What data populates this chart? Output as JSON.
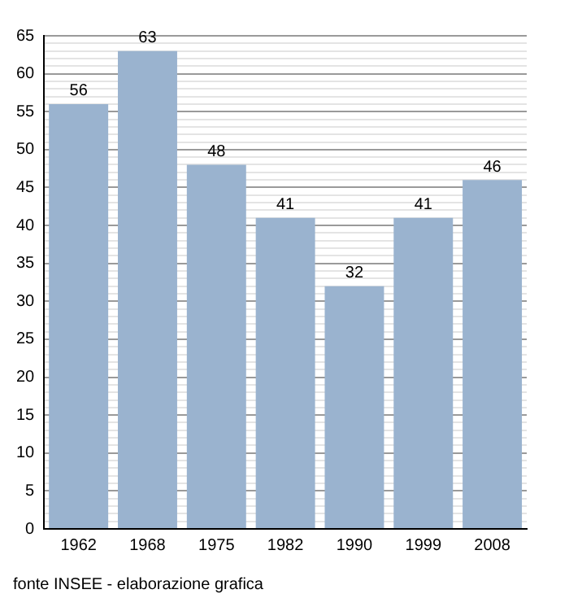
{
  "chart_data": {
    "type": "bar",
    "categories": [
      "1962",
      "1968",
      "1975",
      "1982",
      "1990",
      "1999",
      "2008"
    ],
    "values": [
      56,
      63,
      48,
      41,
      32,
      41,
      46
    ],
    "color": "#9ab3cf",
    "data_labels": true,
    "grid": "y",
    "legend": false,
    "ylim": [
      0,
      65
    ],
    "yticks": [
      0,
      {
        "value": 1,
        "label": null
      },
      {
        "value": 2,
        "label": null
      },
      {
        "value": 3,
        "label": null
      },
      {
        "value": 4,
        "label": null
      },
      5,
      {
        "value": 6,
        "label": null
      },
      {
        "value": 7,
        "label": null
      },
      {
        "value": 8,
        "label": null
      },
      {
        "value": 9,
        "label": null
      },
      10,
      {
        "value": 11,
        "label": null
      },
      {
        "value": 12,
        "label": null
      },
      {
        "value": 13,
        "label": null
      },
      {
        "value": 14,
        "label": null
      },
      15,
      {
        "value": 16,
        "label": null
      },
      {
        "value": 17,
        "label": null
      },
      {
        "value": 18,
        "label": null
      },
      {
        "value": 19,
        "label": null
      },
      20,
      {
        "value": 21,
        "label": null
      },
      {
        "value": 22,
        "label": null
      },
      {
        "value": 23,
        "label": null
      },
      {
        "value": 24,
        "label": null
      },
      25,
      {
        "value": 26,
        "label": null
      },
      {
        "value": 27,
        "label": null
      },
      {
        "value": 28,
        "label": null
      },
      {
        "value": 29,
        "label": null
      },
      30,
      {
        "value": 31,
        "label": null
      },
      {
        "value": 32,
        "label": null
      },
      {
        "value": 33,
        "label": null
      },
      {
        "value": 34,
        "label": null
      },
      35,
      {
        "value": 36,
        "label": null
      },
      {
        "value": 37,
        "label": null
      },
      {
        "value": 38,
        "label": null
      },
      {
        "value": 39,
        "label": null
      },
      40,
      {
        "value": 41,
        "label": null
      },
      {
        "value": 42,
        "label": null
      },
      {
        "value": 43,
        "label": null
      },
      {
        "value": 44,
        "label": null
      },
      45,
      {
        "value": 46,
        "label": null
      },
      {
        "value": 47,
        "label": null
      },
      {
        "value": 48,
        "label": null
      },
      {
        "value": 49,
        "label": null
      },
      50,
      {
        "value": 51,
        "label": null
      },
      {
        "value": 52,
        "label": null
      },
      {
        "value": 53,
        "label": null
      },
      {
        "value": 54,
        "label": null
      },
      55,
      {
        "value": 56,
        "label": null
      },
      {
        "value": 57,
        "label": null
      },
      {
        "value": 58,
        "label": null
      },
      {
        "value": 59,
        "label": null
      },
      60,
      {
        "value": 61,
        "label": null
      },
      {
        "value": 62,
        "label": null
      },
      {
        "value": 63,
        "label": null
      },
      {
        "value": 64,
        "label": null
      },
      65
    ],
    "annotations": [
      "fonte INSEE - elaborazione grafica"
    ]
  }
}
